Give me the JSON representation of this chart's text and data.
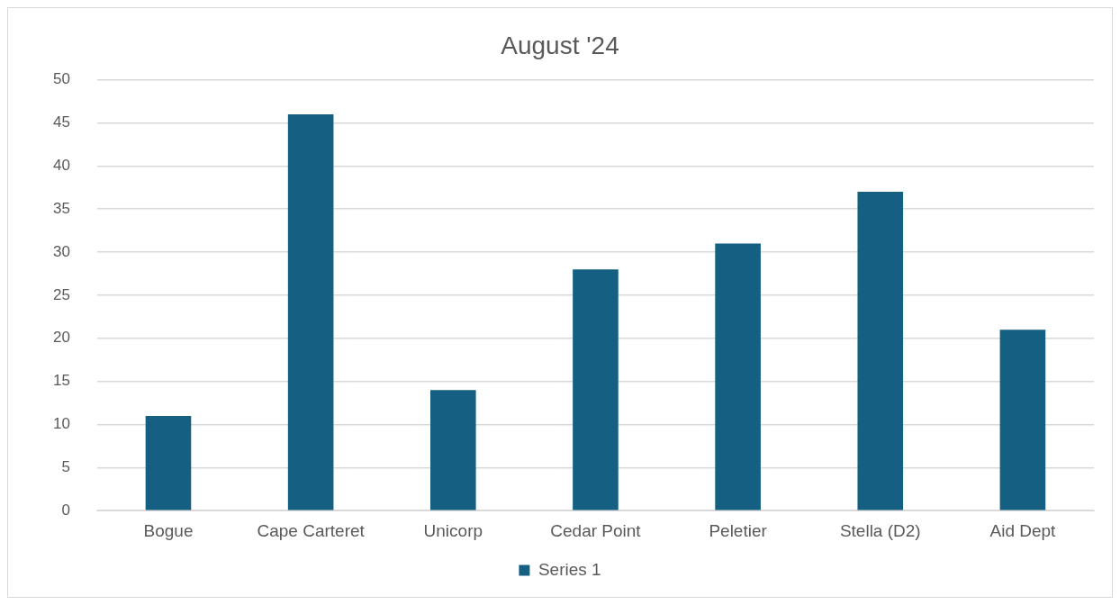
{
  "chart_data": {
    "type": "bar",
    "title": "August '24",
    "categories": [
      "Bogue",
      "Cape Carteret",
      "Unicorp",
      "Cedar Point",
      "Peletier",
      "Stella (D2)",
      "Aid Dept"
    ],
    "series": [
      {
        "name": "Series 1",
        "color": "#156082",
        "values": [
          11,
          46,
          14,
          28,
          31,
          37,
          21
        ]
      }
    ],
    "ylim": [
      0,
      50
    ],
    "yticks": [
      0,
      5,
      10,
      15,
      20,
      25,
      30,
      35,
      40,
      45,
      50
    ],
    "grid": "y",
    "legend": "bottom"
  }
}
